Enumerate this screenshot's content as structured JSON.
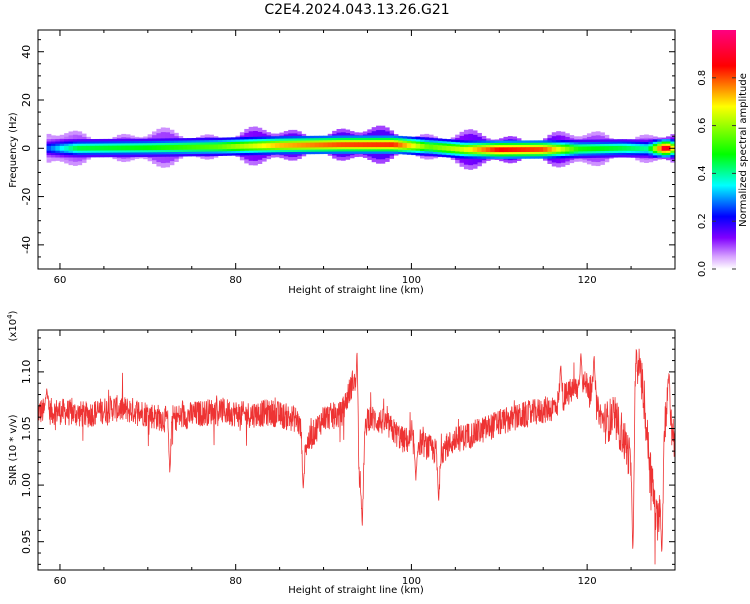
{
  "page": {
    "title": "C2E4.2024.043.13.26.G21"
  },
  "chart_data": [
    {
      "type": "heatmap",
      "xlabel": "Height of straight line (km)",
      "ylabel": "Frequency (Hz)",
      "xlim": [
        57.5,
        130
      ],
      "ylim": [
        -50,
        49
      ],
      "xticks": [
        60,
        80,
        100,
        120
      ],
      "yticks": [
        -40,
        -20,
        0,
        20,
        40
      ],
      "colorbar": {
        "label": "Normalized spectral amplitude",
        "range": [
          0,
          1
        ],
        "ticks": [
          0.0,
          0.2,
          0.4,
          0.6,
          0.8
        ]
      },
      "colors": [
        "#ffffff",
        "#c080ff",
        "#8000ff",
        "#0000ff",
        "#00ffff",
        "#00ff00",
        "#ffff00",
        "#ff0000",
        "#ff0080"
      ],
      "ridge": [
        {
          "x": 58.5,
          "center_hz": 0.0,
          "amplitude": 0.25
        },
        {
          "x": 62,
          "center_hz": 0.0,
          "amplitude": 0.45
        },
        {
          "x": 70,
          "center_hz": 0.2,
          "amplitude": 0.48
        },
        {
          "x": 78,
          "center_hz": 0.6,
          "amplitude": 0.55
        },
        {
          "x": 85,
          "center_hz": 1.2,
          "amplitude": 0.72
        },
        {
          "x": 92,
          "center_hz": 1.5,
          "amplitude": 0.8
        },
        {
          "x": 98,
          "center_hz": 1.5,
          "amplitude": 0.82
        },
        {
          "x": 102,
          "center_hz": 0.6,
          "amplitude": 0.55
        },
        {
          "x": 106,
          "center_hz": -0.5,
          "amplitude": 0.65
        },
        {
          "x": 110,
          "center_hz": -0.6,
          "amplitude": 0.85
        },
        {
          "x": 115,
          "center_hz": -0.5,
          "amplitude": 0.8
        },
        {
          "x": 119,
          "center_hz": -0.3,
          "amplitude": 0.5
        },
        {
          "x": 124,
          "center_hz": 0.0,
          "amplitude": 0.45
        },
        {
          "x": 127,
          "center_hz": -0.2,
          "amplitude": 0.4
        },
        {
          "x": 129,
          "center_hz": 0.0,
          "amplitude": 0.95
        },
        {
          "x": 130,
          "center_hz": 0.0,
          "amplitude": 0.6
        }
      ]
    },
    {
      "type": "line",
      "xlabel": "Height of straight line (km)",
      "ylabel": "SNR (10 * v/v)",
      "y_multiplier_label": "(x10",
      "y_multiplier_exponent": "4",
      "y_multiplier_close": ")",
      "xlim": [
        57.5,
        130
      ],
      "ylim": [
        0.925,
        1.137
      ],
      "xticks": [
        60,
        80,
        100,
        120
      ],
      "yticks": [
        0.95,
        1.0,
        1.05,
        1.1
      ],
      "ytick_labels": [
        "0.95",
        "1.00",
        "1.05",
        "1.10"
      ],
      "color": "#ee3333",
      "series": [
        {
          "x": [
            57.5,
            60,
            63,
            66,
            69,
            72,
            75,
            78,
            81,
            84,
            87,
            88,
            90,
            92,
            93.5,
            94,
            95,
            97,
            99,
            101,
            103,
            105,
            107,
            110,
            113,
            116,
            118,
            120,
            121,
            122,
            123,
            124,
            125,
            126,
            127,
            128,
            129,
            130
          ],
          "y": [
            1.065,
            1.065,
            1.062,
            1.068,
            1.065,
            1.058,
            1.062,
            1.066,
            1.062,
            1.064,
            1.058,
            1.035,
            1.06,
            1.062,
            1.095,
            1.005,
            1.06,
            1.055,
            1.04,
            1.038,
            1.028,
            1.04,
            1.045,
            1.055,
            1.062,
            1.068,
            1.082,
            1.09,
            1.07,
            1.055,
            1.06,
            1.045,
            1.02,
            1.11,
            1.03,
            0.96,
            1.07,
            1.04
          ]
        }
      ],
      "noise_amplitude": 0.012,
      "extra_events": [
        {
          "x": 58.5,
          "y": 1.09
        },
        {
          "x": 72.5,
          "y": 1.005
        },
        {
          "x": 87.7,
          "y": 0.99
        },
        {
          "x": 93.8,
          "y": 1.13
        },
        {
          "x": 94.4,
          "y": 0.955
        },
        {
          "x": 100.5,
          "y": 1.0
        },
        {
          "x": 103.1,
          "y": 0.98
        },
        {
          "x": 117.0,
          "y": 1.11
        },
        {
          "x": 119.3,
          "y": 1.12
        },
        {
          "x": 120.8,
          "y": 1.12
        },
        {
          "x": 125.6,
          "y": 1.125
        },
        {
          "x": 125.2,
          "y": 0.93
        },
        {
          "x": 128.5,
          "y": 0.93
        },
        {
          "x": 129.3,
          "y": 1.105
        }
      ]
    }
  ]
}
